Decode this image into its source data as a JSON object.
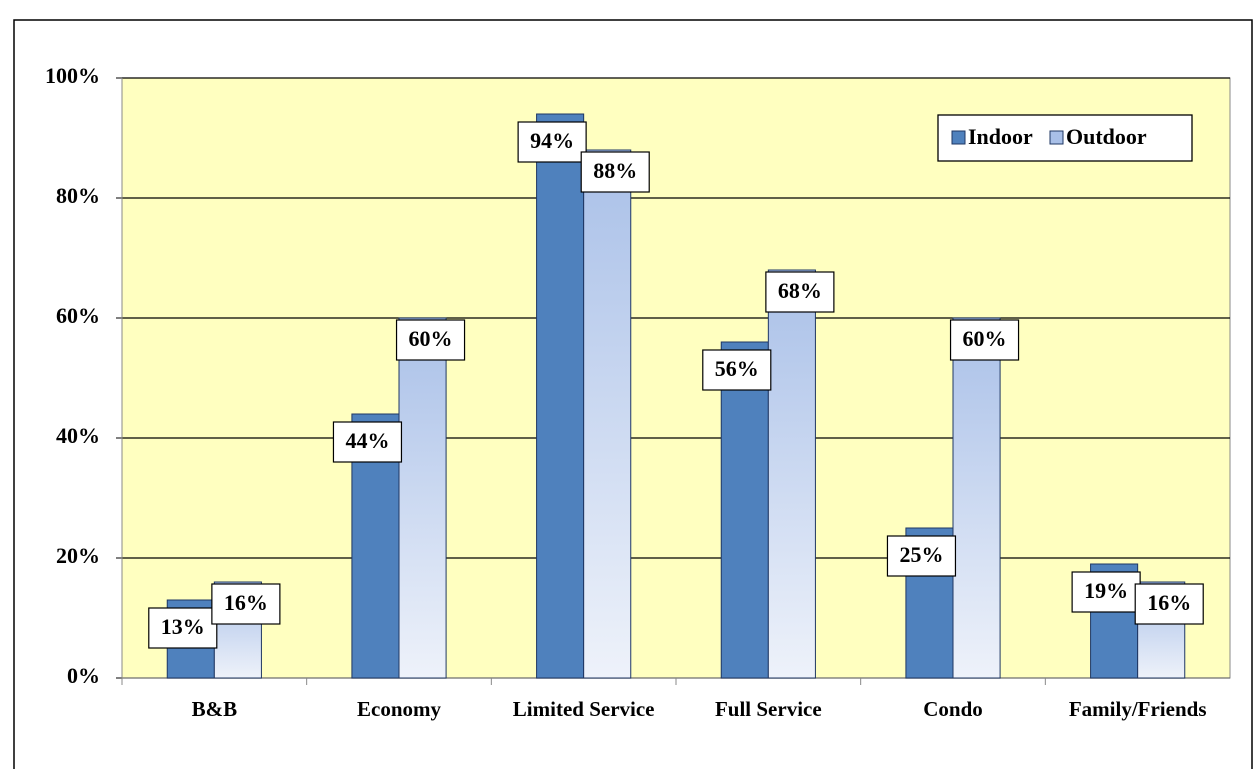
{
  "chart_data": {
    "type": "bar",
    "categories": [
      "B&B",
      "Economy",
      "Limited Service",
      "Full Service",
      "Condo",
      "Family/Friends"
    ],
    "series": [
      {
        "name": "Indoor",
        "color": "#4f81bd",
        "values": [
          13,
          44,
          94,
          56,
          25,
          19
        ],
        "value_labels": [
          "13%",
          "44%",
          "94%",
          "56%",
          "25%",
          "19%"
        ]
      },
      {
        "name": "Outdoor",
        "color": "#a9c0e8",
        "values": [
          16,
          60,
          88,
          68,
          60,
          16
        ],
        "value_labels": [
          "16%",
          "60%",
          "88%",
          "68%",
          "60%",
          "16%"
        ]
      }
    ],
    "ylim": [
      0,
      100
    ],
    "yticks": [
      {
        "value": 0,
        "label": "0%"
      },
      {
        "value": 20,
        "label": "20%"
      },
      {
        "value": 40,
        "label": "40%"
      },
      {
        "value": 60,
        "label": "60%"
      },
      {
        "value": 80,
        "label": "80%"
      },
      {
        "value": 100,
        "label": "100%"
      }
    ],
    "grid": true,
    "legend": "top-right",
    "background": "#ffffc0"
  }
}
